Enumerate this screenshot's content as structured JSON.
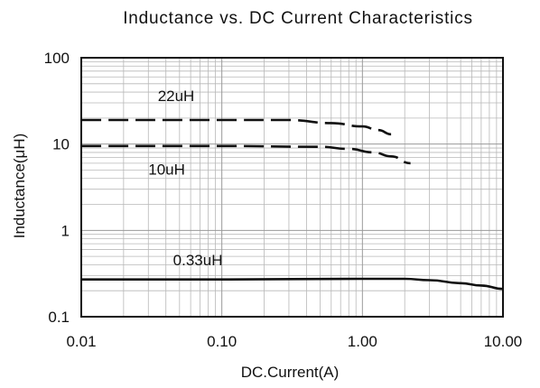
{
  "chart_data": {
    "type": "line",
    "title": "Inductance vs. DC Current Characteristics",
    "xlabel": "DC.Current(A)",
    "ylabel": "Inductance(μH)",
    "x_scale": "log",
    "y_scale": "log",
    "xlim": [
      0.01,
      10
    ],
    "ylim": [
      0.1,
      100
    ],
    "grid": true,
    "x_ticks": [
      {
        "value": 0.01,
        "label": "0.01"
      },
      {
        "value": 0.1,
        "label": "0.10"
      },
      {
        "value": 1,
        "label": "1.00"
      },
      {
        "value": 10,
        "label": "10.00"
      }
    ],
    "y_ticks": [
      {
        "value": 0.1,
        "label": "0.1"
      },
      {
        "value": 1,
        "label": "1"
      },
      {
        "value": 10,
        "label": "10"
      },
      {
        "value": 100,
        "label": "100"
      }
    ],
    "series": [
      {
        "name": "22uH",
        "dash": true,
        "points": [
          [
            0.01,
            19
          ],
          [
            0.1,
            19
          ],
          [
            0.3,
            19
          ],
          [
            0.6,
            17.5
          ],
          [
            1.0,
            16
          ],
          [
            1.3,
            14.5
          ],
          [
            1.6,
            13
          ]
        ]
      },
      {
        "name": "10uH",
        "dash": true,
        "points": [
          [
            0.01,
            9.5
          ],
          [
            0.1,
            9.5
          ],
          [
            0.5,
            9.3
          ],
          [
            0.8,
            8.8
          ],
          [
            1.2,
            8.0
          ],
          [
            1.6,
            7.2
          ],
          [
            2.2,
            6.0
          ]
        ]
      },
      {
        "name": "0.33uH",
        "dash": false,
        "points": [
          [
            0.01,
            0.27
          ],
          [
            0.1,
            0.27
          ],
          [
            1.0,
            0.275
          ],
          [
            2.0,
            0.275
          ],
          [
            3.0,
            0.265
          ],
          [
            5.0,
            0.245
          ],
          [
            7.0,
            0.23
          ],
          [
            10.0,
            0.21
          ]
        ]
      }
    ]
  }
}
